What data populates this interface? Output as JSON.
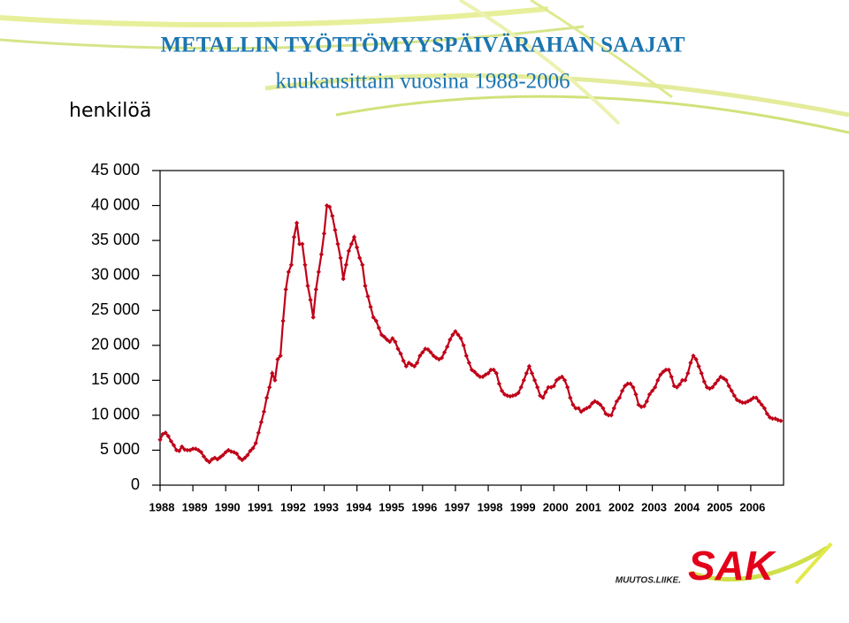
{
  "chart_data": {
    "type": "line",
    "title": "METALLIN TYÖTTÖMYYSPÄIVÄRAHAN SAAJAT",
    "subtitle": "kuukausittain vuosina  1988-2006",
    "y_label": "henkilöä",
    "color": "#c00018",
    "categories": [
      "1988",
      null,
      null,
      null,
      null,
      null,
      null,
      null,
      null,
      null,
      null,
      null,
      "1989",
      null,
      null,
      null,
      null,
      null,
      null,
      null,
      null,
      null,
      null,
      null,
      "1990",
      null,
      null,
      null,
      null,
      null,
      null,
      null,
      null,
      null,
      null,
      null,
      "1991",
      null,
      null,
      null,
      null,
      null,
      null,
      null,
      null,
      null,
      null,
      null,
      "1992",
      null,
      null,
      null,
      null,
      null,
      null,
      null,
      null,
      null,
      null,
      null,
      "1993",
      null,
      null,
      null,
      null,
      null,
      null,
      null,
      null,
      null,
      null,
      null,
      "1994",
      null,
      null,
      null,
      null,
      null,
      null,
      null,
      null,
      null,
      null,
      null,
      "1995",
      null,
      null,
      null,
      null,
      null,
      null,
      null,
      null,
      null,
      null,
      null,
      "1996",
      null,
      null,
      null,
      null,
      null,
      null,
      null,
      null,
      null,
      null,
      null,
      "1997",
      null,
      null,
      null,
      null,
      null,
      null,
      null,
      null,
      null,
      null,
      null,
      "1998",
      null,
      null,
      null,
      null,
      null,
      null,
      null,
      null,
      null,
      null,
      null,
      "1999",
      null,
      null,
      null,
      null,
      null,
      null,
      null,
      null,
      null,
      null,
      null,
      "2000",
      null,
      null,
      null,
      null,
      null,
      null,
      null,
      null,
      null,
      null,
      null,
      "2001",
      null,
      null,
      null,
      null,
      null,
      null,
      null,
      null,
      null,
      null,
      null,
      "2002",
      null,
      null,
      null,
      null,
      null,
      null,
      null,
      null,
      null,
      null,
      null,
      "2003",
      null,
      null,
      null,
      null,
      null,
      null,
      null,
      null,
      null,
      null,
      null,
      "2004",
      null,
      null,
      null,
      null,
      null,
      null,
      null,
      null,
      null,
      null,
      null,
      "2005",
      null,
      null,
      null,
      null,
      null,
      null,
      null,
      null,
      null,
      null,
      null,
      "2006",
      null,
      null,
      null,
      null,
      null,
      null,
      null,
      null,
      null,
      null,
      null
    ],
    "values": [
      6500,
      7300,
      7500,
      7000,
      6300,
      5700,
      5000,
      4900,
      5500,
      5100,
      5000,
      5000,
      5200,
      5200,
      5000,
      4700,
      4100,
      3600,
      3300,
      3700,
      3900,
      3700,
      4000,
      4300,
      4700,
      5000,
      4800,
      4700,
      4500,
      3900,
      3600,
      3900,
      4300,
      4900,
      5300,
      6000,
      7500,
      9000,
      10500,
      12500,
      14000,
      16000,
      15000,
      18000,
      18500,
      23500,
      28000,
      30500,
      31500,
      35500,
      37500,
      34500,
      34500,
      31500,
      28500,
      26500,
      24000,
      28000,
      30500,
      33000,
      36000,
      40000,
      39800,
      38500,
      36500,
      34500,
      32500,
      29500,
      31500,
      33500,
      34500,
      35500,
      34000,
      32500,
      31500,
      28500,
      27000,
      25500,
      24000,
      23500,
      22500,
      21500,
      21200,
      20800,
      20500,
      21000,
      20500,
      19500,
      18800,
      17800,
      17000,
      17500,
      17200,
      17000,
      17500,
      18500,
      19000,
      19500,
      19400,
      19000,
      18500,
      18200,
      18000,
      18200,
      19000,
      19800,
      20800,
      21500,
      22000,
      21500,
      21000,
      20000,
      18500,
      17500,
      16500,
      16200,
      15800,
      15500,
      15500,
      15800,
      16000,
      16500,
      16500,
      16000,
      14500,
      13500,
      13000,
      12800,
      12700,
      12800,
      12900,
      13200,
      14000,
      15000,
      16000,
      17000,
      16000,
      15000,
      14000,
      12800,
      12500,
      13300,
      14000,
      14000,
      14200,
      15000,
      15300,
      15500,
      15000,
      14000,
      12500,
      11500,
      11000,
      11000,
      10500,
      10800,
      11000,
      11200,
      11700,
      12000,
      11800,
      11500,
      11000,
      10200,
      10000,
      10000,
      11000,
      12000,
      12500,
      13500,
      14200,
      14500,
      14500,
      14000,
      13000,
      11500,
      11200,
      11300,
      12000,
      13000,
      13500,
      14000,
      15000,
      15800,
      16200,
      16500,
      16500,
      15500,
      14200,
      14000,
      14400,
      15000,
      15000,
      16000,
      17500,
      18500,
      18000,
      17000,
      16000,
      14800,
      14000,
      13800,
      14000,
      14500,
      15000,
      15500,
      15300,
      15000,
      14200,
      13500,
      12800,
      12200,
      12000,
      11800,
      11800,
      12000,
      12200,
      12500,
      12500,
      12000,
      11500,
      11000,
      10200,
      9700,
      9500,
      9500,
      9300,
      9200
    ],
    "ylim": [
      0,
      45000
    ],
    "yticks": [
      0,
      {
        "value": 5000,
        "label": "5 000"
      },
      {
        "value": 10000,
        "label": "10 000"
      },
      {
        "value": 15000,
        "label": "15 000"
      },
      {
        "value": 20000,
        "label": "20 000"
      },
      {
        "value": 25000,
        "label": "25 000"
      },
      {
        "value": 30000,
        "label": "30 000"
      },
      {
        "value": 35000,
        "label": "35 000"
      },
      {
        "value": 40000,
        "label": "40 000"
      },
      {
        "value": 45000,
        "label": "45 000"
      }
    ],
    "grid": false
  },
  "logo": {
    "tagline": "MUUTOS.LIIKE.",
    "name": "SAK"
  }
}
